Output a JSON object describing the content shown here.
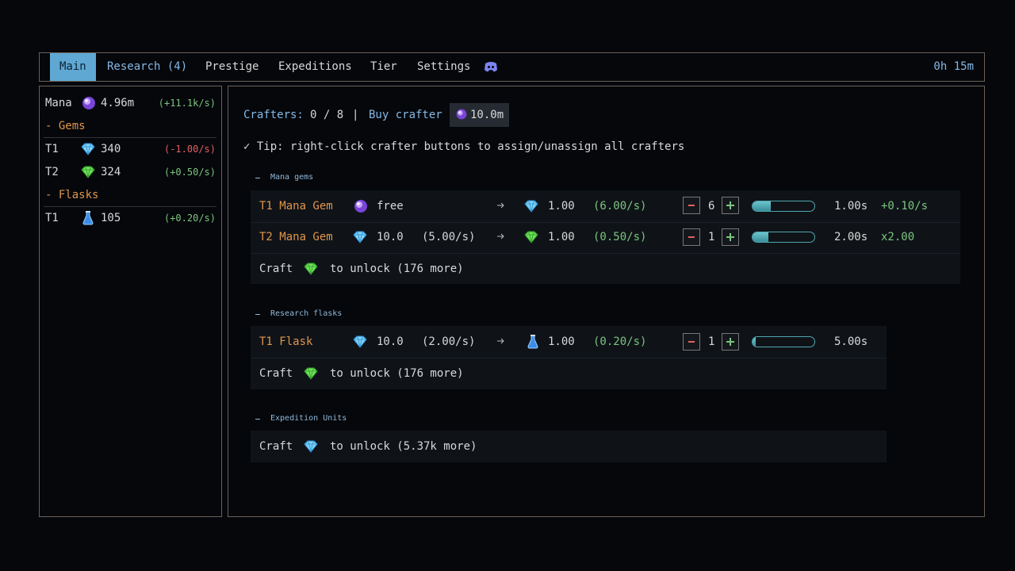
{
  "nav": {
    "tabs": [
      "Main",
      "Research (4)",
      "Prestige",
      "Expeditions",
      "Tier",
      "Settings"
    ],
    "timer": "0h 15m"
  },
  "sidebar": {
    "mana": {
      "label": "Mana",
      "value": "4.96m",
      "rate": "(+11.1k/s)"
    },
    "sections": [
      {
        "title": "- Gems",
        "rows": [
          {
            "tier": "T1",
            "value": "340",
            "rate": "(-1.00/s)"
          },
          {
            "tier": "T2",
            "value": "324",
            "rate": "(+0.50/s)"
          }
        ]
      },
      {
        "title": "- Flasks",
        "rows": [
          {
            "tier": "T1",
            "value": "105",
            "rate": "(+0.20/s)"
          }
        ]
      }
    ]
  },
  "crafters": {
    "label": "Crafters:",
    "count": "0 / 8",
    "separator": "|",
    "buy": "Buy crafter",
    "cost": "10.0m"
  },
  "tip": "✓ Tip: right-click crafter buttons to assign/unassign all crafters",
  "groups": [
    {
      "title": "Mana gems",
      "recipes": [
        {
          "name": "T1 Mana Gem",
          "input": "free",
          "output": "1.00",
          "output_rate": "(6.00/s)",
          "crafters": "6",
          "time": "1.00s",
          "bonus": "+0.10/s",
          "progress": 0.3
        },
        {
          "name": "T2 Mana Gem",
          "input": "10.0",
          "input_rate": "(5.00/s)",
          "output": "1.00",
          "output_rate": "(0.50/s)",
          "crafters": "1",
          "time": "2.00s",
          "bonus": "x2.00",
          "progress": 0.25
        }
      ],
      "locked": {
        "craft": "Craft",
        "unlock": "to unlock (176 more)"
      }
    },
    {
      "title": "Research flasks",
      "recipes": [
        {
          "name": "T1 Flask",
          "input": "10.0",
          "input_rate": "(2.00/s)",
          "output": "1.00",
          "output_rate": "(0.20/s)",
          "crafters": "1",
          "time": "5.00s",
          "progress": 0.05
        }
      ],
      "locked": {
        "craft": "Craft",
        "unlock": "to unlock (176 more)"
      }
    },
    {
      "title": "Expedition Units",
      "locked": {
        "craft": "Craft",
        "unlock": "to unlock (5.37k more)"
      }
    }
  ]
}
